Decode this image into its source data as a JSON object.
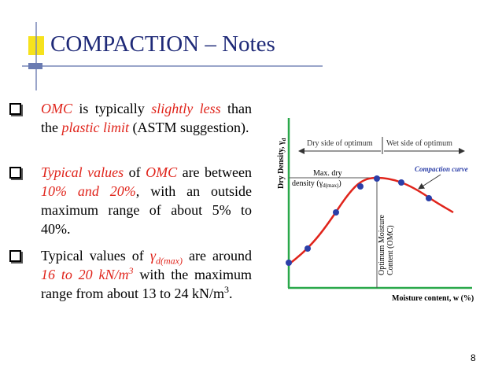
{
  "header": {
    "title": "COMPACTION – Notes"
  },
  "bullets": [
    [
      "OMC",
      " is typically ",
      "slightly less",
      " than the ",
      "plastic limit",
      " (ASTM suggestion)."
    ],
    [
      "Typical values",
      " of ",
      "OMC",
      " are between ",
      "10% and 20%",
      ", with an outside maximum range of about 5% to 40%."
    ],
    [
      "Typical values of ",
      "γ",
      "d(max)",
      " are around ",
      "16 to 20 kN/m",
      "3",
      " with the maximum range from about 13 to 24 kN/m",
      "3",
      "."
    ]
  ],
  "figure": {
    "y_axis_label": [
      "Dry Density, γ",
      "d"
    ],
    "x_axis_label": "Moisture content, w (%)",
    "dry_side": "Dry side of optimum",
    "wet_side": "Wet side of optimum",
    "curve_label": "Compaction curve",
    "max_dry_density": [
      "Max. dry",
      "density (γ",
      "d(max)",
      ")"
    ],
    "omc_label": [
      "Optimum Moisture",
      "Content (OMC)"
    ]
  },
  "page_number": "8"
}
